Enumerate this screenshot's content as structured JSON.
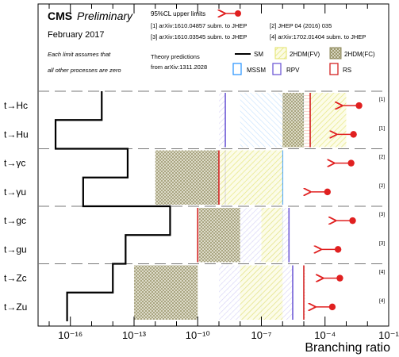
{
  "header": {
    "experiment": "CMS",
    "status": "Preliminary",
    "date": "February 2017",
    "note_line1": "Each limit assumes that",
    "note_line2": "all other processes are zero"
  },
  "legend": {
    "limit_label": "95%CL upper limits",
    "refs": [
      "[1] arXiv:1610.04857 subm. to JHEP",
      "[2] JHEP 04 (2016) 035",
      "[3] arXiv:1610.03545 subm. to JHEP",
      "[4] arXiv:1702.01404 subm. to JHEP"
    ],
    "theory_line1": "Theory predictions",
    "theory_line2": "from arXiv:1311.2028",
    "models": [
      {
        "key": "SM",
        "label": "SM",
        "color": "#000000"
      },
      {
        "key": "2HDMFV",
        "label": "2HDM(FV)",
        "color": "#e3e36a"
      },
      {
        "key": "2HDMFC",
        "label": "2HDM(FC)",
        "color": "#8f8a5c"
      },
      {
        "key": "MSSM",
        "label": "MSSM",
        "color": "#3399ff"
      },
      {
        "key": "RPV",
        "label": "RPV",
        "color": "#6f5bd6"
      },
      {
        "key": "RS",
        "label": "RS",
        "color": "#d42424"
      }
    ]
  },
  "chart_data": {
    "type": "bar",
    "orientation": "horizontal",
    "xlabel": "Branching ratio",
    "x_scale": "log",
    "xlim": [
      3e-18,
      0.1
    ],
    "x_ticks": [
      {
        "value": 1e-16,
        "label": "10⁻¹⁶"
      },
      {
        "value": 1e-13,
        "label": "10⁻¹³"
      },
      {
        "value": 1e-10,
        "label": "10⁻¹⁰"
      },
      {
        "value": 1e-07,
        "label": "10⁻⁷"
      },
      {
        "value": 0.0001,
        "label": "10⁻⁴"
      },
      {
        "value": 0.1,
        "label": "10⁻¹"
      }
    ],
    "categories": [
      "t→Hc",
      "t→Hu",
      "t→γc",
      "t→γu",
      "t→gc",
      "t→gu",
      "t→Zc",
      "t→Zu"
    ],
    "series": [
      {
        "name": "SM",
        "values": [
          3e-15,
          2e-17,
          5e-14,
          4e-16,
          5e-12,
          4e-14,
          1e-14,
          7e-17
        ]
      },
      {
        "name": "2HDM(FV)",
        "ranges": [
          [
            1e-05,
            0.001
          ],
          [
            1e-06,
            1e-05
          ],
          [
            1e-09,
            1e-06
          ],
          null,
          [
            1e-07,
            1e-06
          ],
          null,
          [
            1e-08,
            1e-06
          ],
          null
        ]
      },
      {
        "name": "2HDM(FC)",
        "ranges": [
          [
            1e-06,
            1e-05
          ],
          null,
          [
            1e-12,
            1e-09
          ],
          null,
          [
            1e-10,
            1e-08
          ],
          null,
          [
            1e-13,
            1e-10
          ],
          null
        ]
      },
      {
        "name": "MSSM",
        "ranges": [
          [
            1e-08,
            1e-05
          ],
          null,
          [
            1e-08,
            1e-06
          ],
          null,
          [
            1e-08,
            1e-06
          ],
          null,
          [
            1e-09,
            1e-07
          ],
          null
        ]
      },
      {
        "name": "RPV",
        "ranges": [
          [
            1e-09,
            2e-09
          ],
          null,
          [
            1e-09,
            2e-09
          ],
          null,
          [
            1e-08,
            2e-06
          ],
          null,
          [
            1e-09,
            3e-06
          ],
          null
        ]
      },
      {
        "name": "RS",
        "ranges": [
          [
            1e-05,
            2e-05
          ],
          null,
          [
            1e-09,
            1e-09
          ],
          null,
          [
            1e-10,
            1e-10
          ],
          null,
          [
            1e-05,
            1e-05
          ],
          null
        ]
      }
    ],
    "limits": {
      "label": "95%CL upper limits",
      "values": [
        0.004,
        0.0022,
        0.0017,
        0.00013,
        0.002,
        0.00041,
        0.0005,
        0.00022
      ],
      "refs": [
        "[1]",
        "[1]",
        "[2]",
        "[2]",
        "[3]",
        "[3]",
        "[4]",
        "[4]"
      ]
    },
    "grid": false
  }
}
